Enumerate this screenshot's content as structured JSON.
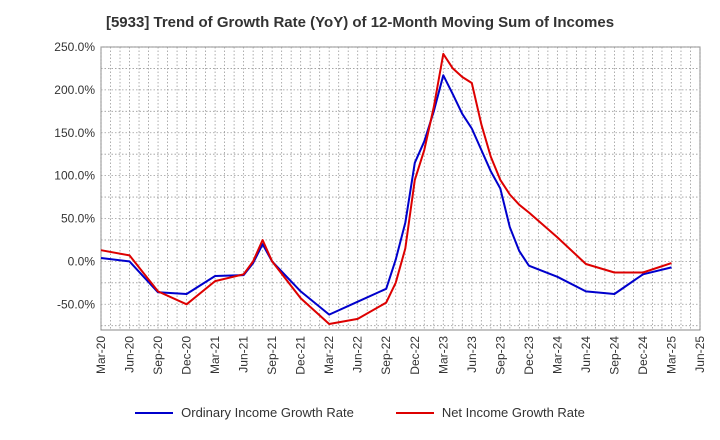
{
  "chart_data": {
    "type": "line",
    "title": "[5933]  Trend of Growth Rate (YoY) of 12-Month Moving Sum of Incomes",
    "x_tick_labels": [
      "Mar-20",
      "Jun-20",
      "Sep-20",
      "Dec-20",
      "Mar-21",
      "Jun-21",
      "Sep-21",
      "Dec-21",
      "Mar-22",
      "Jun-22",
      "Sep-22",
      "Dec-22",
      "Mar-23",
      "Jun-23",
      "Sep-23",
      "Dec-23",
      "Mar-24",
      "Jun-24",
      "Sep-24",
      "Dec-24",
      "Mar-25",
      "Jun-25"
    ],
    "y_ticks": [
      250,
      200,
      150,
      100,
      50,
      0,
      -50
    ],
    "y_tick_labels": [
      "250.0%",
      "200.0%",
      "150.0%",
      "100.0%",
      "50.0%",
      "0.0%",
      "-50.0%"
    ],
    "ylim": [
      -80,
      250
    ],
    "grid": true,
    "legend_position": "bottom",
    "series": [
      {
        "name": "Ordinary Income Growth Rate",
        "color": "#0000cc",
        "points": [
          [
            "Mar-20",
            4
          ],
          [
            "Jun-20",
            0
          ],
          [
            "Sep-20",
            -36
          ],
          [
            "Dec-20",
            -38
          ],
          [
            "Mar-21",
            -17
          ],
          [
            "Jun-21",
            -16
          ],
          [
            "Jul-21",
            -2
          ],
          [
            "Aug-21",
            20
          ],
          [
            "Sep-21",
            0
          ],
          [
            "Dec-21",
            -35
          ],
          [
            "Mar-22",
            -62
          ],
          [
            "Jun-22",
            -47
          ],
          [
            "Sep-22",
            -32
          ],
          [
            "Oct-22",
            2
          ],
          [
            "Nov-22",
            45
          ],
          [
            "Dec-22",
            115
          ],
          [
            "Jan-23",
            140
          ],
          [
            "Feb-23",
            175
          ],
          [
            "Mar-23",
            217
          ],
          [
            "Apr-23",
            195
          ],
          [
            "May-23",
            172
          ],
          [
            "Jun-23",
            155
          ],
          [
            "Jul-23",
            130
          ],
          [
            "Aug-23",
            105
          ],
          [
            "Sep-23",
            85
          ],
          [
            "Oct-23",
            40
          ],
          [
            "Nov-23",
            12
          ],
          [
            "Dec-23",
            -5
          ],
          [
            "Mar-24",
            -18
          ],
          [
            "Jun-24",
            -35
          ],
          [
            "Sep-24",
            -38
          ],
          [
            "Dec-24",
            -15
          ],
          [
            "Mar-25",
            -7
          ]
        ]
      },
      {
        "name": "Net Income Growth Rate",
        "color": "#dd0000",
        "points": [
          [
            "Mar-20",
            13
          ],
          [
            "Jun-20",
            7
          ],
          [
            "Sep-20",
            -35
          ],
          [
            "Dec-20",
            -50
          ],
          [
            "Mar-21",
            -23
          ],
          [
            "Jun-21",
            -15
          ],
          [
            "Jul-21",
            0
          ],
          [
            "Aug-21",
            25
          ],
          [
            "Sep-21",
            0
          ],
          [
            "Dec-21",
            -43
          ],
          [
            "Mar-22",
            -73
          ],
          [
            "Jun-22",
            -67
          ],
          [
            "Sep-22",
            -48
          ],
          [
            "Oct-22",
            -25
          ],
          [
            "Nov-22",
            15
          ],
          [
            "Dec-22",
            95
          ],
          [
            "Jan-23",
            130
          ],
          [
            "Feb-23",
            180
          ],
          [
            "Mar-23",
            242
          ],
          [
            "Apr-23",
            225
          ],
          [
            "May-23",
            215
          ],
          [
            "Jun-23",
            208
          ],
          [
            "Jul-23",
            160
          ],
          [
            "Aug-23",
            122
          ],
          [
            "Sep-23",
            95
          ],
          [
            "Oct-23",
            78
          ],
          [
            "Nov-23",
            66
          ],
          [
            "Dec-23",
            57
          ],
          [
            "Mar-24",
            28
          ],
          [
            "Jun-24",
            -3
          ],
          [
            "Sep-24",
            -13
          ],
          [
            "Dec-24",
            -13
          ],
          [
            "Mar-25",
            -2
          ]
        ]
      }
    ]
  }
}
